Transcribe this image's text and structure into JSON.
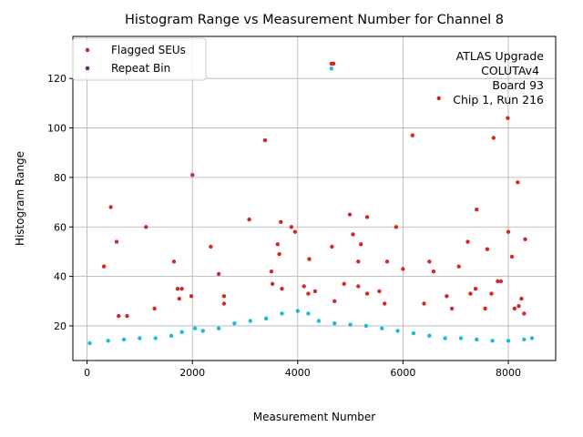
{
  "chart_data": {
    "type": "scatter",
    "title": "Histogram Range vs Measurement Number for Channel 8",
    "xlabel": "Measurement Number",
    "ylabel": "Histogram Range",
    "xlim": [
      -270,
      8900
    ],
    "ylim": [
      6,
      137
    ],
    "xticks": [
      0,
      2000,
      4000,
      6000,
      8000
    ],
    "yticks": [
      20,
      40,
      60,
      80,
      100,
      120
    ],
    "grid": true,
    "legend_position": "top-left",
    "annotation": [
      "ATLAS Upgrade",
      "COLUTAv4",
      "Board 93",
      "Chip 1, Run 216"
    ],
    "series": [
      {
        "name": "Flagged SEUs",
        "color": "#d62728",
        "points": [
          [
            320,
            44
          ],
          [
            450,
            68
          ],
          [
            560,
            54
          ],
          [
            1120,
            60
          ],
          [
            1650,
            46
          ],
          [
            1720,
            35
          ],
          [
            1800,
            35
          ],
          [
            1980,
            32
          ],
          [
            2000,
            81
          ],
          [
            2350,
            52
          ],
          [
            2500,
            41
          ],
          [
            2600,
            32
          ],
          [
            3080,
            63
          ],
          [
            3380,
            95
          ],
          [
            3500,
            42
          ],
          [
            3620,
            53
          ],
          [
            3650,
            49
          ],
          [
            3680,
            62
          ],
          [
            3880,
            60
          ],
          [
            3950,
            58
          ],
          [
            4220,
            47
          ],
          [
            4640,
            126
          ],
          [
            4680,
            126
          ],
          [
            4650,
            52
          ],
          [
            4990,
            65
          ],
          [
            5050,
            57
          ],
          [
            5150,
            46
          ],
          [
            5200,
            53
          ],
          [
            5320,
            64
          ],
          [
            5700,
            46
          ],
          [
            5870,
            60
          ],
          [
            6180,
            97
          ],
          [
            6500,
            46
          ],
          [
            6580,
            42
          ],
          [
            6680,
            112
          ],
          [
            7060,
            44
          ],
          [
            7230,
            54
          ],
          [
            7400,
            67
          ],
          [
            7600,
            51
          ],
          [
            7720,
            96
          ],
          [
            7800,
            38
          ],
          [
            7860,
            38
          ],
          [
            7990,
            104
          ],
          [
            8000,
            58
          ],
          [
            8070,
            48
          ],
          [
            8180,
            78
          ],
          [
            8320,
            55
          ],
          [
            8250,
            31
          ],
          [
            8200,
            28
          ],
          [
            8300,
            25
          ],
          [
            600,
            24
          ],
          [
            760,
            24
          ],
          [
            1280,
            27
          ],
          [
            1750,
            31
          ],
          [
            2600,
            29
          ],
          [
            3520,
            37
          ],
          [
            3700,
            35
          ],
          [
            4120,
            36
          ],
          [
            4200,
            33
          ],
          [
            4330,
            34
          ],
          [
            4700,
            30
          ],
          [
            4880,
            37
          ],
          [
            5150,
            36
          ],
          [
            5320,
            33
          ],
          [
            5550,
            34
          ],
          [
            5650,
            29
          ],
          [
            6000,
            43
          ],
          [
            6400,
            29
          ],
          [
            6830,
            32
          ],
          [
            6930,
            27
          ],
          [
            7280,
            33
          ],
          [
            7380,
            35
          ],
          [
            7560,
            27
          ],
          [
            7680,
            33
          ],
          [
            8120,
            27
          ]
        ]
      },
      {
        "name": "Repeat Bin",
        "color": "#17becf",
        "points": [
          [
            4640,
            124
          ],
          [
            2050,
            19
          ]
        ]
      },
      {
        "name": "",
        "color": "#17becf",
        "points": [
          [
            50,
            13
          ],
          [
            400,
            14
          ],
          [
            700,
            14.5
          ],
          [
            1000,
            15
          ],
          [
            1300,
            15
          ],
          [
            1600,
            16
          ],
          [
            1800,
            17.5
          ],
          [
            2200,
            18
          ],
          [
            2500,
            19
          ],
          [
            2800,
            21
          ],
          [
            3100,
            22
          ],
          [
            3400,
            23
          ],
          [
            3700,
            25
          ],
          [
            4000,
            26
          ],
          [
            4200,
            25
          ],
          [
            4400,
            22
          ],
          [
            4700,
            21
          ],
          [
            5000,
            20.5
          ],
          [
            5300,
            20
          ],
          [
            5600,
            19
          ],
          [
            5900,
            18
          ],
          [
            6200,
            17
          ],
          [
            6500,
            16
          ],
          [
            6800,
            15
          ],
          [
            7100,
            15
          ],
          [
            7400,
            14.5
          ],
          [
            7700,
            14
          ],
          [
            8000,
            14
          ],
          [
            8300,
            14.5
          ],
          [
            8450,
            15
          ]
        ]
      }
    ]
  }
}
